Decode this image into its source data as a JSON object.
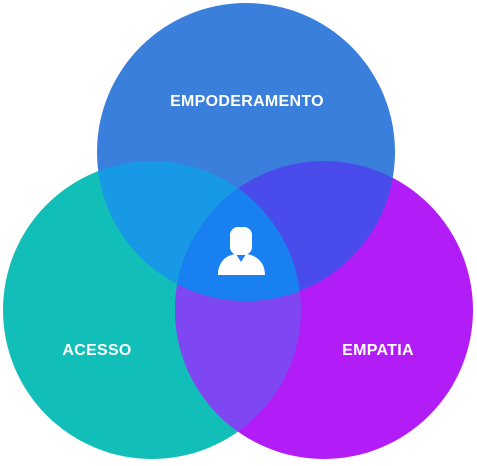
{
  "diagram": {
    "circles": [
      {
        "id": "top",
        "label": "EMPODERAMENTO",
        "color": "#3A7FDC"
      },
      {
        "id": "left",
        "label": "ACESSO",
        "color": "#11BEB8"
      },
      {
        "id": "right",
        "label": "EMPATIA",
        "color": "#B21CF7"
      }
    ],
    "overlaps": {
      "top_left": "#1899E6",
      "top_right": "#4A4BEB",
      "left_right": "#7F47F2",
      "center": "#1880F0"
    },
    "center_icon": "user-icon"
  }
}
